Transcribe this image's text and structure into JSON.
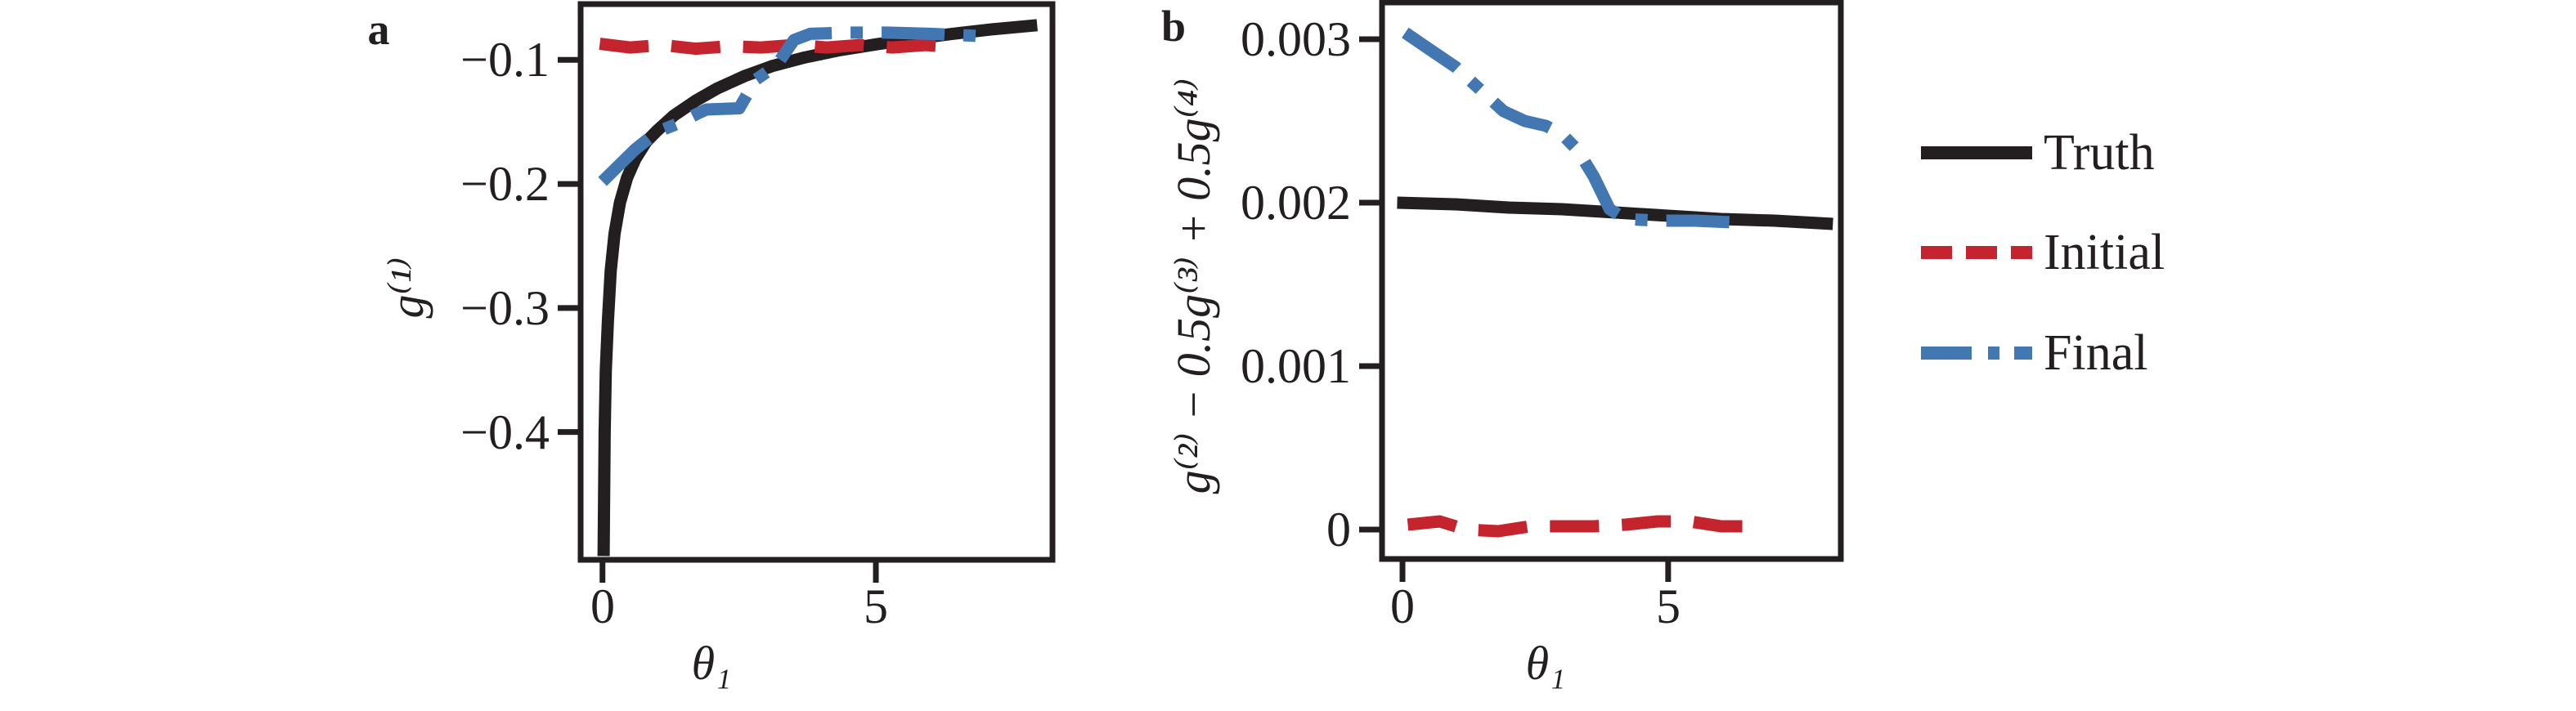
{
  "colors": {
    "axis": "#231f20",
    "truth": "#231f20",
    "initial": "#c3242e",
    "final": "#4377b2"
  },
  "legend": {
    "items": [
      {
        "label": "Truth",
        "key": "truth",
        "style": "solid"
      },
      {
        "label": "Initial",
        "key": "initial",
        "style": "dashed"
      },
      {
        "label": "Final",
        "key": "final",
        "style": "dashdot"
      }
    ]
  },
  "chart_data": [
    {
      "type": "line",
      "panel_label": "a",
      "xlabel": "θ₁",
      "ylabel": "g⁽¹⁾",
      "xlim": [
        -0.4,
        8.23
      ],
      "ylim": [
        -0.503,
        -0.055
      ],
      "grid": false,
      "x_ticks": [
        {
          "v": 0,
          "label": "0"
        },
        {
          "v": 5,
          "label": "5"
        }
      ],
      "y_ticks": [
        {
          "v": -0.1,
          "label": "−0.1"
        },
        {
          "v": -0.2,
          "label": "−0.2"
        },
        {
          "v": -0.3,
          "label": "−0.3"
        },
        {
          "v": -0.4,
          "label": "−0.4"
        }
      ],
      "series": [
        {
          "name": "Truth",
          "key": "truth",
          "style": "solid",
          "points": [
            [
              0.02,
              -0.5
            ],
            [
              0.04,
              -0.4
            ],
            [
              0.06,
              -0.35
            ],
            [
              0.1,
              -0.31
            ],
            [
              0.15,
              -0.27
            ],
            [
              0.22,
              -0.24
            ],
            [
              0.32,
              -0.215
            ],
            [
              0.45,
              -0.195
            ],
            [
              0.6,
              -0.18
            ],
            [
              0.8,
              -0.166
            ],
            [
              1.0,
              -0.157
            ],
            [
              1.3,
              -0.145
            ],
            [
              1.7,
              -0.133
            ],
            [
              2.1,
              -0.123
            ],
            [
              2.6,
              -0.113
            ],
            [
              3.1,
              -0.105
            ],
            [
              3.7,
              -0.098
            ],
            [
              4.3,
              -0.0925
            ],
            [
              5.0,
              -0.0875
            ],
            [
              5.7,
              -0.083
            ],
            [
              6.4,
              -0.079
            ],
            [
              7.1,
              -0.0755
            ],
            [
              7.95,
              -0.072
            ]
          ]
        },
        {
          "name": "Initial",
          "key": "initial",
          "style": "dashed",
          "points": [
            [
              -0.05,
              -0.087
            ],
            [
              0.5,
              -0.09
            ],
            [
              1.1,
              -0.088
            ],
            [
              1.7,
              -0.091
            ],
            [
              2.3,
              -0.089
            ],
            [
              2.9,
              -0.09
            ],
            [
              3.5,
              -0.088
            ],
            [
              4.1,
              -0.09
            ],
            [
              4.7,
              -0.088
            ],
            [
              5.3,
              -0.09
            ],
            [
              5.9,
              -0.088
            ],
            [
              6.28,
              -0.089
            ]
          ]
        },
        {
          "name": "Final",
          "key": "final",
          "style": "dashdot",
          "points": [
            [
              0.0,
              -0.198
            ],
            [
              0.6,
              -0.172
            ],
            [
              1.0,
              -0.158
            ],
            [
              1.4,
              -0.151
            ],
            [
              1.75,
              -0.143
            ],
            [
              1.9,
              -0.14
            ],
            [
              2.5,
              -0.139
            ],
            [
              2.8,
              -0.116
            ],
            [
              3.0,
              -0.11
            ],
            [
              3.25,
              -0.1
            ],
            [
              3.5,
              -0.084
            ],
            [
              3.8,
              -0.079
            ],
            [
              4.5,
              -0.078
            ],
            [
              5.2,
              -0.078
            ],
            [
              6.0,
              -0.079
            ],
            [
              7.05,
              -0.081
            ]
          ]
        }
      ]
    },
    {
      "type": "line",
      "panel_label": "b",
      "xlabel": "θ₁",
      "ylabel": "g⁽²⁾ − 0.5g⁽³⁾ + 0.5g⁽⁴⁾",
      "xlim": [
        -0.385,
        8.25
      ],
      "ylim": [
        -0.00018,
        0.003225
      ],
      "grid": false,
      "x_ticks": [
        {
          "v": 0,
          "label": "0"
        },
        {
          "v": 5,
          "label": "5"
        }
      ],
      "y_ticks": [
        {
          "v": 0.003,
          "label": "0.003"
        },
        {
          "v": 0.002,
          "label": "0.002"
        },
        {
          "v": 0.001,
          "label": "0.001"
        },
        {
          "v": 0.0,
          "label": "0"
        }
      ],
      "series": [
        {
          "name": "Truth",
          "key": "truth",
          "style": "solid",
          "points": [
            [
              -0.1,
              0.002
            ],
            [
              1.0,
              0.00199
            ],
            [
              2.0,
              0.00197
            ],
            [
              3.0,
              0.00196
            ],
            [
              4.0,
              0.00194
            ],
            [
              5.0,
              0.00192
            ],
            [
              6.0,
              0.0019
            ],
            [
              7.0,
              0.00189
            ],
            [
              8.1,
              0.00187
            ]
          ]
        },
        {
          "name": "Initial",
          "key": "initial",
          "style": "dashed",
          "points": [
            [
              0.1,
              3e-05
            ],
            [
              0.7,
              5e-05
            ],
            [
              1.2,
              0.0
            ],
            [
              1.8,
              -1e-05
            ],
            [
              2.4,
              2e-05
            ],
            [
              3.0,
              2e-05
            ],
            [
              3.6,
              2e-05
            ],
            [
              4.2,
              3e-05
            ],
            [
              4.8,
              5e-05
            ],
            [
              5.4,
              5e-05
            ],
            [
              6.0,
              2e-05
            ],
            [
              6.4,
              2e-05
            ]
          ]
        },
        {
          "name": "Final",
          "key": "final",
          "style": "dashdot",
          "points": [
            [
              0.05,
              0.00304
            ],
            [
              0.5,
              0.00294
            ],
            [
              1.0,
              0.00283
            ],
            [
              1.5,
              0.00268
            ],
            [
              1.9,
              0.00256
            ],
            [
              2.3,
              0.0025
            ],
            [
              2.7,
              0.00247
            ],
            [
              3.0,
              0.00242
            ],
            [
              3.3,
              0.00232
            ],
            [
              3.6,
              0.00216
            ],
            [
              3.9,
              0.00196
            ],
            [
              4.2,
              0.0019
            ],
            [
              4.8,
              0.00189
            ],
            [
              5.5,
              0.00189
            ],
            [
              6.2,
              0.00188
            ]
          ]
        }
      ]
    }
  ]
}
